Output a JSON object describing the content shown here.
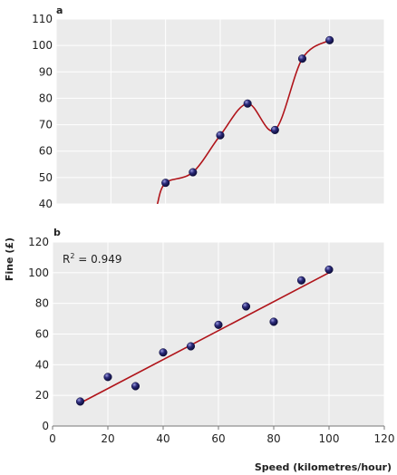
{
  "colors": {
    "plot_bg": "#ebebeb",
    "grid": "#ffffff",
    "line": "#b0141a",
    "point": "#2b2a7a",
    "text": "#222222"
  },
  "chart_data": [
    {
      "type": "line",
      "panel_label": "a",
      "xlabel": "",
      "ylabel": "",
      "xlim": [
        0,
        120
      ],
      "ylim": [
        40,
        110
      ],
      "y_ticks": [
        40,
        50,
        60,
        70,
        80,
        90,
        100,
        110
      ],
      "grid": true,
      "series": [
        {
          "points": [
            {
              "x": 40,
              "y": 48
            },
            {
              "x": 50,
              "y": 52
            },
            {
              "x": 60,
              "y": 66
            },
            {
              "x": 70,
              "y": 78
            },
            {
              "x": 80,
              "y": 68
            },
            {
              "x": 90,
              "y": 95
            },
            {
              "x": 100,
              "y": 102
            }
          ],
          "curve": [
            {
              "x": 37,
              "y": 40
            },
            {
              "x": 40,
              "y": 48
            },
            {
              "x": 50,
              "y": 52
            },
            {
              "x": 60,
              "y": 66
            },
            {
              "x": 70,
              "y": 78
            },
            {
              "x": 80,
              "y": 68
            },
            {
              "x": 90,
              "y": 95
            },
            {
              "x": 100,
              "y": 102
            }
          ]
        }
      ]
    },
    {
      "type": "scatter",
      "panel_label": "b",
      "xlabel": "Speed (kilometres/hour)",
      "ylabel": "Fine (£)",
      "xlim": [
        0,
        120
      ],
      "ylim": [
        0,
        120
      ],
      "x_ticks": [
        0,
        20,
        40,
        60,
        80,
        100,
        120
      ],
      "y_ticks": [
        0,
        20,
        40,
        60,
        80,
        100,
        120
      ],
      "grid": true,
      "annotation": {
        "r2_base": "R",
        "r2_sup": "2",
        "r2_value": " = 0.949"
      },
      "series": [
        {
          "points": [
            {
              "x": 10,
              "y": 16
            },
            {
              "x": 20,
              "y": 32
            },
            {
              "x": 30,
              "y": 26
            },
            {
              "x": 40,
              "y": 48
            },
            {
              "x": 50,
              "y": 52
            },
            {
              "x": 60,
              "y": 66
            },
            {
              "x": 70,
              "y": 78
            },
            {
              "x": 80,
              "y": 68
            },
            {
              "x": 90,
              "y": 95
            },
            {
              "x": 100,
              "y": 102
            }
          ],
          "fit_line": [
            {
              "x": 10,
              "y": 15
            },
            {
              "x": 100,
              "y": 100
            }
          ]
        }
      ]
    }
  ]
}
